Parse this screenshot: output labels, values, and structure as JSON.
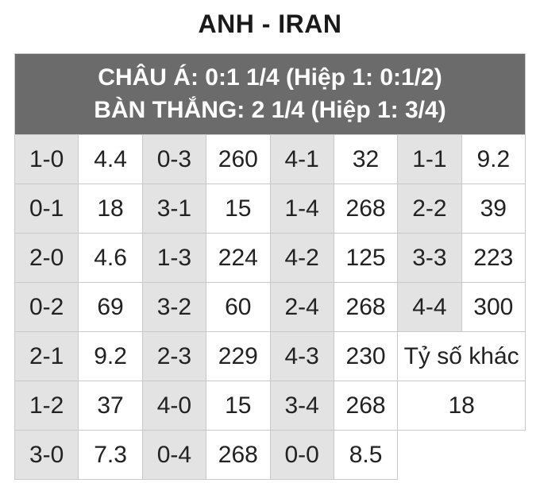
{
  "title": "ANH - IRAN",
  "header_line1": "CHÂU Á: 0:1 1/4 (Hiệp 1: 0:1/2)",
  "header_line2": "BÀN THẮNG: 2 1/4 (Hiệp 1: 3/4)",
  "table": {
    "rows": [
      [
        {
          "text": "1-0",
          "shaded": true
        },
        {
          "text": "4.4",
          "shaded": false
        },
        {
          "text": "0-3",
          "shaded": true
        },
        {
          "text": "260",
          "shaded": false
        },
        {
          "text": "4-1",
          "shaded": true
        },
        {
          "text": "32",
          "shaded": false
        },
        {
          "text": "1-1",
          "shaded": true
        },
        {
          "text": "9.2",
          "shaded": false
        }
      ],
      [
        {
          "text": "0-1",
          "shaded": true
        },
        {
          "text": "18",
          "shaded": false
        },
        {
          "text": "3-1",
          "shaded": true
        },
        {
          "text": "15",
          "shaded": false
        },
        {
          "text": "1-4",
          "shaded": true
        },
        {
          "text": "268",
          "shaded": false
        },
        {
          "text": "2-2",
          "shaded": true
        },
        {
          "text": "39",
          "shaded": false
        }
      ],
      [
        {
          "text": "2-0",
          "shaded": true
        },
        {
          "text": "4.6",
          "shaded": false
        },
        {
          "text": "1-3",
          "shaded": true
        },
        {
          "text": "224",
          "shaded": false
        },
        {
          "text": "4-2",
          "shaded": true
        },
        {
          "text": "125",
          "shaded": false
        },
        {
          "text": "3-3",
          "shaded": true
        },
        {
          "text": "223",
          "shaded": false
        }
      ],
      [
        {
          "text": "0-2",
          "shaded": true
        },
        {
          "text": "69",
          "shaded": false
        },
        {
          "text": "3-2",
          "shaded": true
        },
        {
          "text": "60",
          "shaded": false
        },
        {
          "text": "2-4",
          "shaded": true
        },
        {
          "text": "268",
          "shaded": false
        },
        {
          "text": "4-4",
          "shaded": true
        },
        {
          "text": "300",
          "shaded": false
        }
      ],
      [
        {
          "text": "2-1",
          "shaded": true
        },
        {
          "text": "9.2",
          "shaded": false
        },
        {
          "text": "2-3",
          "shaded": true
        },
        {
          "text": "229",
          "shaded": false
        },
        {
          "text": "4-3",
          "shaded": true
        },
        {
          "text": "230",
          "shaded": false
        },
        {
          "text": "Tỷ số khác",
          "shaded": false,
          "colspan": 2
        }
      ],
      [
        {
          "text": "1-2",
          "shaded": true
        },
        {
          "text": "37",
          "shaded": false
        },
        {
          "text": "4-0",
          "shaded": true
        },
        {
          "text": "15",
          "shaded": false
        },
        {
          "text": "3-4",
          "shaded": true
        },
        {
          "text": "268",
          "shaded": false
        },
        {
          "text": "18",
          "shaded": false,
          "colspan": 2
        }
      ],
      [
        {
          "text": "3-0",
          "shaded": true
        },
        {
          "text": "7.3",
          "shaded": false
        },
        {
          "text": "0-4",
          "shaded": true
        },
        {
          "text": "268",
          "shaded": false
        },
        {
          "text": "0-0",
          "shaded": true
        },
        {
          "text": "8.5",
          "shaded": false
        }
      ]
    ]
  },
  "colors": {
    "header_bg": "#6b6b6b",
    "header_text": "#ffffff",
    "shaded_bg": "#e3e3e3",
    "border": "#c9c9c9",
    "text": "#222222"
  }
}
